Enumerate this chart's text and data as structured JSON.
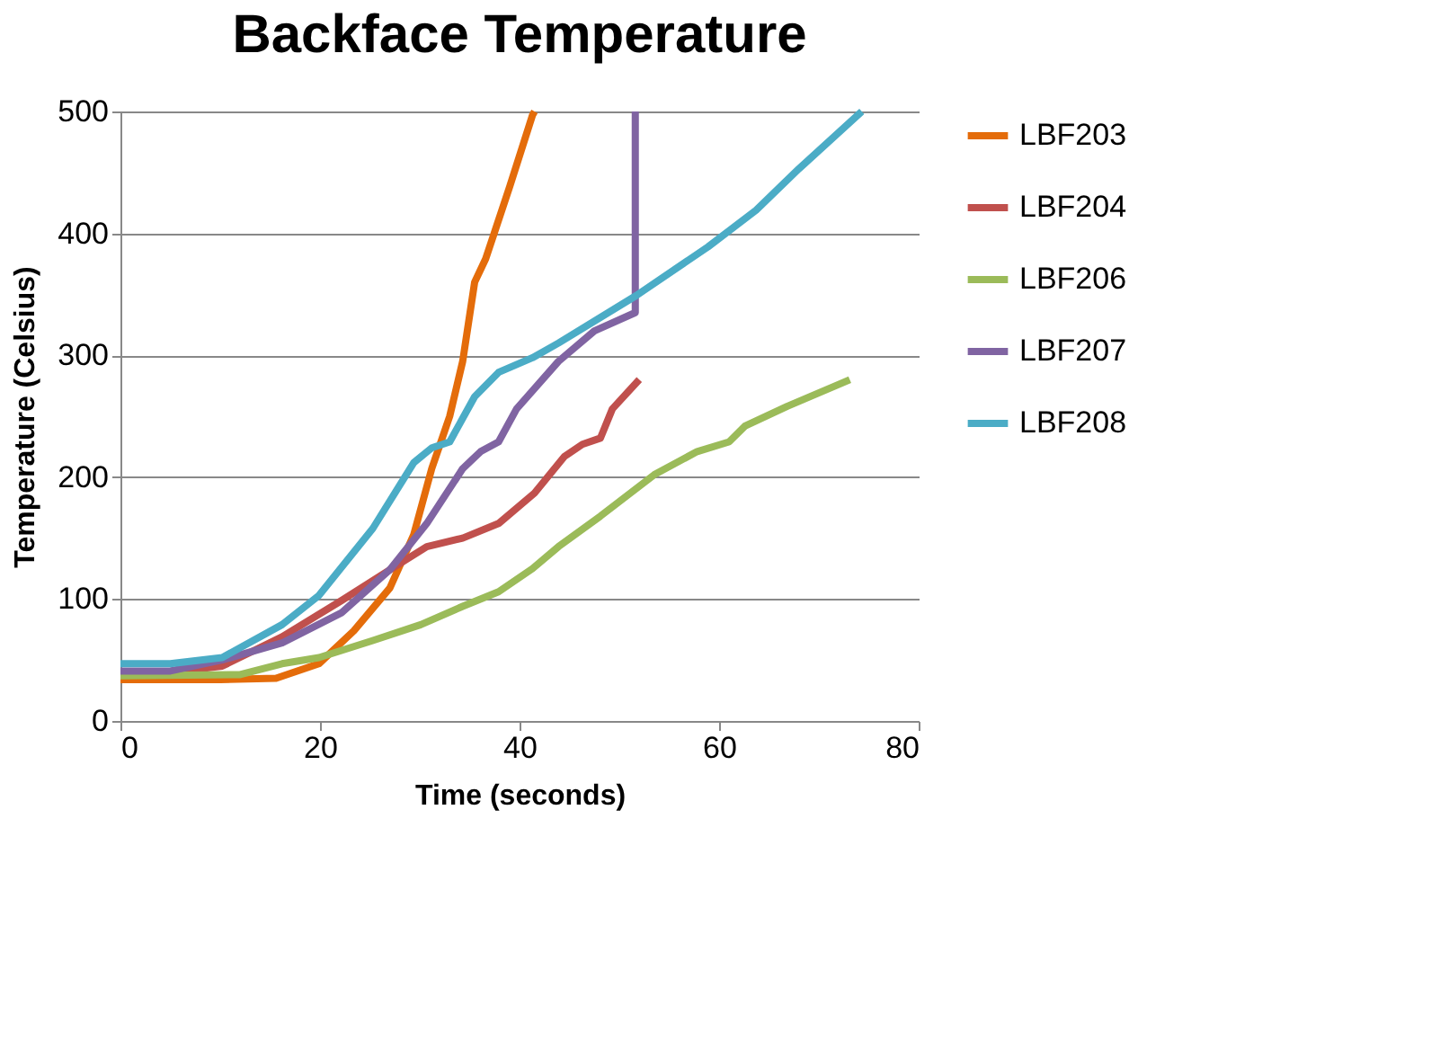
{
  "chart_data": {
    "type": "line",
    "title": "Backface Temperature",
    "xlabel": "Time (seconds)",
    "ylabel": "Temperature (Celsius)",
    "xlim": [
      0,
      80
    ],
    "xticks": [
      0,
      20,
      40,
      60,
      80
    ],
    "ylim": [
      0,
      500
    ],
    "yticks": [
      0,
      100,
      200,
      300,
      400,
      500
    ],
    "grid": "y",
    "legend": "right",
    "marker": "none",
    "line_style": "solid",
    "series": [
      {
        "name": "LBF203",
        "color": "#e46c0a",
        "x": [
          0,
          10,
          15.6,
          19.9,
          23.4,
          27,
          29.4,
          31.2,
          33,
          34.3,
          35.5,
          36.6,
          39,
          41.3,
          41.5
        ],
        "values": [
          34,
          34,
          35,
          47,
          74,
          109,
          153,
          207,
          250,
          295,
          360,
          379,
          438,
          497,
          500
        ]
      },
      {
        "name": "LBF204",
        "color": "#c0504d",
        "x": [
          0,
          5,
          10.2,
          16.2,
          22.2,
          27,
          30.7,
          34.3,
          37.9,
          41.5,
          44.5,
          46.3,
          48.1,
          49.3,
          52
        ],
        "values": [
          40,
          40,
          45,
          69,
          99,
          124,
          143,
          150,
          162,
          187,
          217,
          227,
          232,
          256,
          280
        ]
      },
      {
        "name": "LBF206",
        "color": "#9bbb59",
        "x": [
          0,
          12,
          16.2,
          19.9,
          25.3,
          30.1,
          34.3,
          37.9,
          41.3,
          43.9,
          48.1,
          53.5,
          57.8,
          61,
          62.6,
          66.8,
          73.1
        ],
        "values": [
          37,
          38,
          47,
          52,
          66,
          79,
          94,
          106,
          125,
          143,
          168,
          202,
          221,
          229,
          242,
          258,
          280
        ]
      },
      {
        "name": "LBF207",
        "color": "#8064a2",
        "x": [
          0,
          5,
          10.2,
          16.2,
          22.2,
          27,
          30.7,
          34.3,
          36.1,
          37.9,
          39.7,
          43.9,
          47.5,
          51.6,
          51.6
        ],
        "values": [
          41,
          41,
          50,
          64,
          89,
          124,
          162,
          207,
          221,
          229,
          256,
          295,
          320,
          335,
          500
        ]
      },
      {
        "name": "LBF208",
        "color": "#4bacc6",
        "x": [
          0,
          5,
          10.2,
          16.2,
          19.9,
          25.3,
          29.4,
          31.2,
          33,
          35.5,
          37.9,
          41.3,
          43.9,
          51.7,
          58.9,
          63.7,
          68,
          74.3
        ],
        "values": [
          47,
          47,
          52,
          79,
          103,
          158,
          212,
          224,
          229,
          266,
          286,
          298,
          310,
          349,
          389,
          419,
          453,
          500
        ]
      }
    ]
  }
}
